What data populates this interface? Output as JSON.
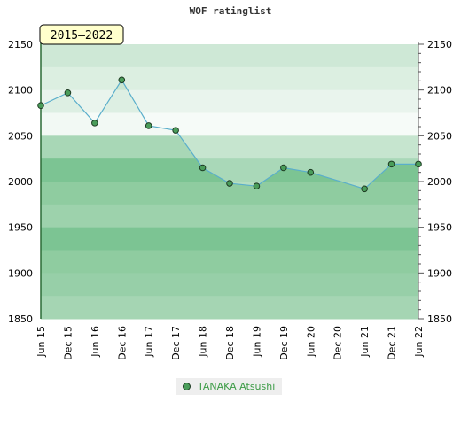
{
  "chart_data": {
    "type": "area",
    "title": "WOF ratinglist",
    "period_badge": "2015–2022",
    "categories": [
      "Jun 15",
      "Dec 15",
      "Jun 16",
      "Dec 16",
      "Jun 17",
      "Dec 17",
      "Jun 18",
      "Dec 18",
      "Jun 19",
      "Dec 19",
      "Jun 20",
      "Dec 20",
      "Jun 21",
      "Dec 21",
      "Jun 22"
    ],
    "series": [
      {
        "name": "TANAKA Atsushi",
        "values": [
          2083,
          2097,
          2064,
          2111,
          2061,
          2056,
          2015,
          1998,
          1995,
          2015,
          2010,
          null,
          1992,
          2019,
          2019
        ]
      }
    ],
    "ylim": [
      1850,
      2150
    ],
    "yticks": [
      1850,
      1900,
      1950,
      2000,
      2050,
      2100,
      2150
    ],
    "ylabel": "",
    "xlabel": "",
    "legend_position": "bottom-center",
    "grid": false,
    "colors": {
      "line": "#5aaecb",
      "area_fill": "#7cbf8a",
      "marker": "#4a9d5a",
      "marker_stroke": "#1d3a22",
      "legend_text": "#3b9b45",
      "badge_fill": "#ffffcc"
    }
  }
}
